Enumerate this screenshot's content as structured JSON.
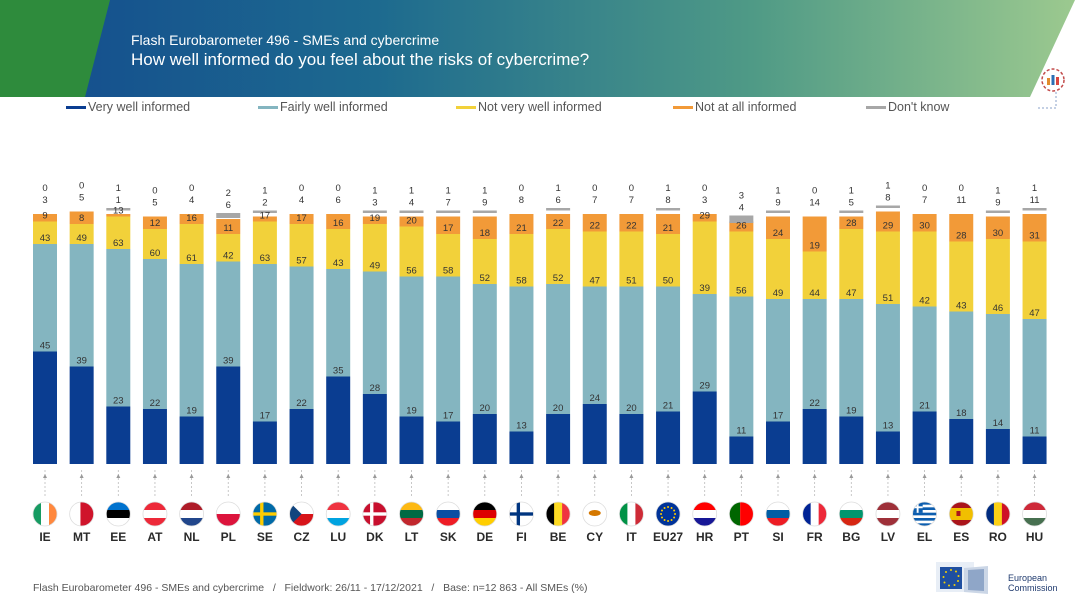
{
  "header": {
    "subtitle": "Flash Eurobarometer 496 - SMEs and cybercrime",
    "title": "How well informed do you feel about the risks of cybercrime?"
  },
  "colors": {
    "very": "#0a3d91",
    "fairly": "#84b5c0",
    "not_very": "#f2d13a",
    "not_at_all": "#f29a38",
    "dont_know": "#a7a7a7",
    "banner_blue": "#134a8e",
    "banner_green": "#2e8b3c"
  },
  "footer": {
    "text": "Flash Eurobarometer 496 - SMEs and cybercrime   /   Fieldwork: 26/11 - 17/12/2021   /   Base: n=12 863 - All SMEs (%)",
    "logo_line1": "European",
    "logo_line2": "Commission"
  },
  "chart_data": {
    "type": "bar",
    "stacked": true,
    "percent": true,
    "categories": [
      "IE",
      "MT",
      "EE",
      "AT",
      "NL",
      "PL",
      "SE",
      "CZ",
      "LU",
      "DK",
      "LT",
      "SK",
      "DE",
      "FI",
      "BE",
      "CY",
      "IT",
      "EU27",
      "HR",
      "PT",
      "SI",
      "FR",
      "BG",
      "LV",
      "EL",
      "ES",
      "RO",
      "HU"
    ],
    "series": [
      {
        "name": "Very well informed",
        "key": "very",
        "values": [
          45,
          39,
          23,
          22,
          19,
          39,
          17,
          22,
          35,
          28,
          19,
          17,
          20,
          13,
          20,
          24,
          20,
          21,
          29,
          11,
          17,
          22,
          19,
          13,
          21,
          18,
          14,
          11
        ]
      },
      {
        "name": "Fairly well informed",
        "key": "fairly",
        "values": [
          43,
          49,
          63,
          60,
          61,
          42,
          63,
          57,
          43,
          49,
          56,
          58,
          52,
          58,
          52,
          47,
          51,
          50,
          39,
          56,
          49,
          44,
          47,
          51,
          42,
          43,
          46,
          47
        ]
      },
      {
        "name": "Not very well informed",
        "key": "not_very",
        "values": [
          9,
          8,
          13,
          12,
          16,
          11,
          17,
          17,
          16,
          19,
          20,
          17,
          18,
          21,
          22,
          22,
          22,
          21,
          29,
          26,
          24,
          19,
          28,
          29,
          30,
          28,
          30,
          31
        ]
      },
      {
        "name": "Not at all informed",
        "key": "not_at_all",
        "values": [
          3,
          5,
          1,
          5,
          4,
          6,
          2,
          4,
          6,
          3,
          4,
          7,
          9,
          8,
          6,
          7,
          7,
          8,
          3,
          4,
          9,
          14,
          5,
          8,
          7,
          11,
          9,
          11
        ]
      },
      {
        "name": "Don't know",
        "key": "dont_know",
        "values": [
          0,
          0,
          1,
          0,
          0,
          2,
          1,
          0,
          0,
          1,
          1,
          1,
          1,
          0,
          1,
          0,
          0,
          1,
          0,
          3,
          1,
          0,
          1,
          1,
          0,
          0,
          1,
          1
        ]
      }
    ],
    "ylim": [
      0,
      100
    ],
    "grid": false,
    "legend_position": "top"
  }
}
